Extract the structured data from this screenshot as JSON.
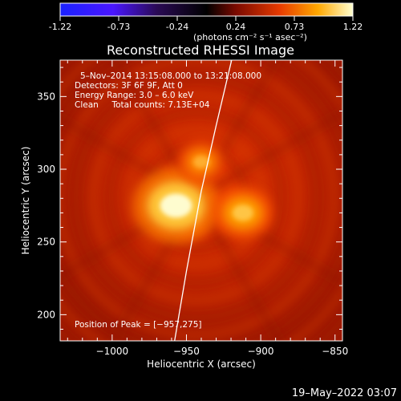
{
  "colorbar": {
    "ticks": [
      "-1.22",
      "-0.73",
      "-0.24",
      "0.24",
      "0.73",
      "1.22"
    ],
    "unit_label": "(photons cm⁻² s⁻¹ asec⁻²)",
    "range": [
      -1.22,
      1.22
    ]
  },
  "chart_data": {
    "type": "heatmap",
    "title": "Reconstructed RHESSI Image",
    "xlabel": "Heliocentric X (arcsec)",
    "ylabel": "Heliocentric Y (arcsec)",
    "xlim": [
      -1035,
      -845
    ],
    "ylim": [
      182,
      375
    ],
    "xticks": [
      -1000,
      -950,
      -900,
      -850
    ],
    "xtick_labels": [
      "−1000",
      "−950",
      "−900",
      "−850"
    ],
    "yticks": [
      200,
      250,
      300,
      350
    ],
    "ytick_labels": [
      "200",
      "250",
      "300",
      "350"
    ],
    "sources": [
      {
        "x": -957,
        "y": 275,
        "intensity": 1.22
      },
      {
        "x": -912,
        "y": 270,
        "intensity": 0.75
      },
      {
        "x": -940,
        "y": 305,
        "intensity": 0.55
      }
    ],
    "limb_points": [
      [
        -918,
        382
      ],
      [
        -930,
        330
      ],
      [
        -940,
        285
      ],
      [
        -950,
        230
      ],
      [
        -958,
        182
      ]
    ],
    "peak": [
      -957,
      275
    ]
  },
  "info": {
    "line1": "5–Nov–2014 13:15:08.000 to 13:21:08.000",
    "line2": "Detectors: 3F 6F 9F, Att 0",
    "line3": "Energy Range: 3.0 – 6.0 keV",
    "line4": "Clean     Total counts: 7.13E+04",
    "peak_label": "Position of Peak = [−957,275]"
  },
  "timestamp": "19–May–2022 03:07"
}
